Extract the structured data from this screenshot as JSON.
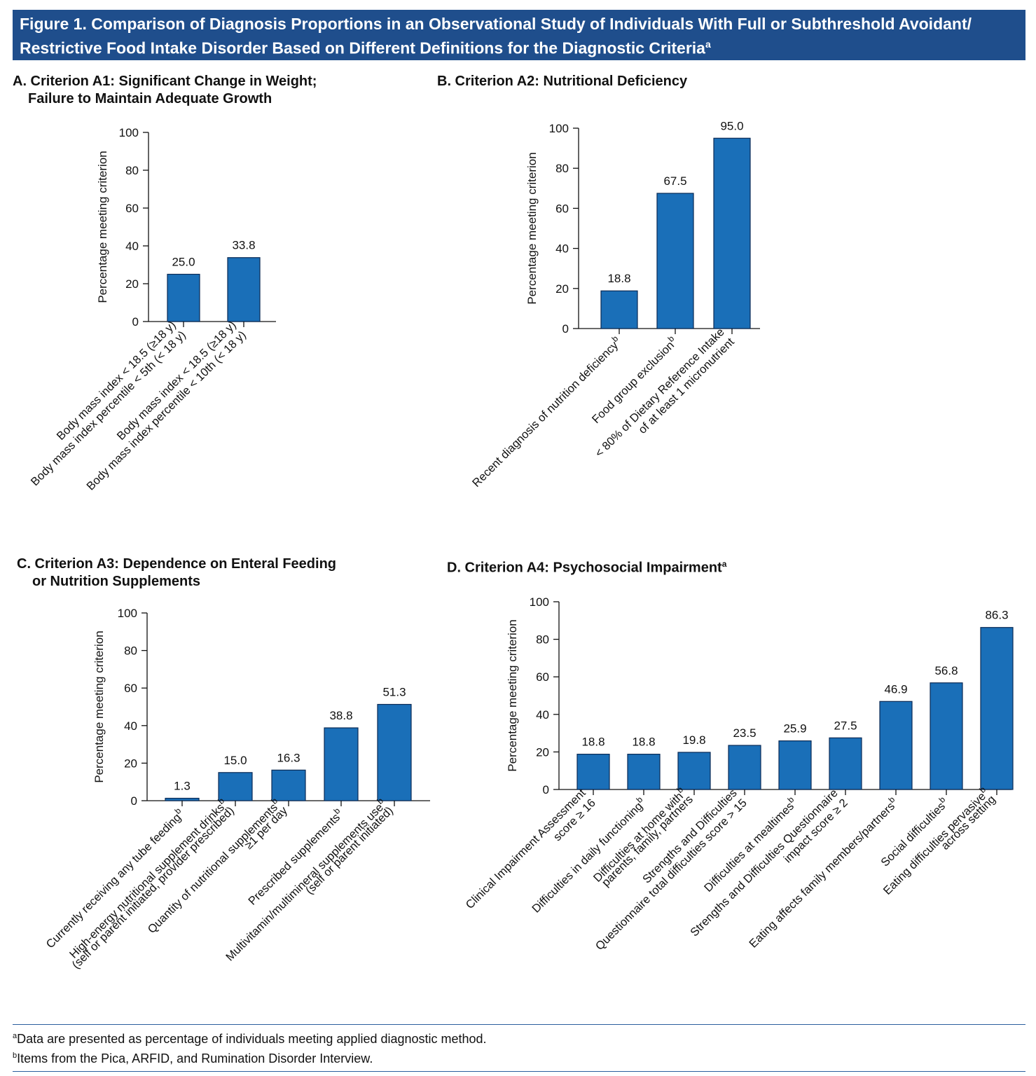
{
  "figure": {
    "title_line1": "Figure 1. Comparison of Diagnosis Proportions in an Observational Study of Individuals With Full or Subthreshold Avoidant/",
    "title_line2": "Restrictive Food Intake Disorder Based on Different Definitions for the Diagnostic Criteria",
    "title_sup": "a"
  },
  "panels": {
    "A": {
      "title_line1": "A. Criterion A1: Significant Change in Weight;",
      "title_line2": "Failure to Maintain Adequate Growth",
      "title_sup": ""
    },
    "B": {
      "title_line1": "B. Criterion A2: Nutritional Deficiency",
      "title_line2": "",
      "title_sup": ""
    },
    "C": {
      "title_line1": "C. Criterion A3: Dependence on Enteral Feeding",
      "title_line2": "or Nutrition Supplements",
      "title_sup": ""
    },
    "D": {
      "title_line1": "D. Criterion A4: Psychosocial Impairment",
      "title_line2": "",
      "title_sup": "a"
    }
  },
  "chart_data": [
    {
      "id": "A",
      "type": "bar",
      "ylabel": "Percentage meeting criterion",
      "ylim": [
        0,
        100
      ],
      "yticks": [
        "0",
        "20",
        "40",
        "60",
        "80",
        "100"
      ],
      "categories": [
        [
          "Body mass index < 18.5 (≥18 y)",
          "Body mass index percentile  < 5th (< 18 y)"
        ],
        [
          "Body mass index < 18.5 (≥18 y)",
          "Body mass index percentile < 10th  (< 18 y)"
        ]
      ],
      "category_sup": [
        "",
        ""
      ],
      "values": [
        25.0,
        33.8
      ],
      "labels": [
        "25.0",
        "33.8"
      ],
      "bar_color": "#1a6fb8"
    },
    {
      "id": "B",
      "type": "bar",
      "ylabel": "Percentage meeting criterion",
      "ylim": [
        0,
        100
      ],
      "yticks": [
        "0",
        "20",
        "40",
        "60",
        "80",
        "100"
      ],
      "categories": [
        [
          "Recent diagnosis of nutrition deficiency"
        ],
        [
          "Food group exclusion"
        ],
        [
          "< 80% of Dietary Reference Intake",
          "of at least 1 micronutrient"
        ]
      ],
      "category_sup": [
        "b",
        "b",
        ""
      ],
      "values": [
        18.8,
        67.5,
        95.0
      ],
      "labels": [
        "18.8",
        "67.5",
        "95.0"
      ],
      "bar_color": "#1a6fb8"
    },
    {
      "id": "C",
      "type": "bar",
      "ylabel": "Percentage meeting criterion",
      "ylim": [
        0,
        100
      ],
      "yticks": [
        "0",
        "20",
        "40",
        "60",
        "80",
        "100"
      ],
      "categories": [
        [
          "Currently receiving any tube feeding"
        ],
        [
          "High-energy nutritional supplement drinks",
          "(self or parent initiated, provider prescribed)"
        ],
        [
          "Quantity of nutritional supplements",
          "≥1 per day"
        ],
        [
          "Prescribed supplements"
        ],
        [
          "Multivitamin/multimineral supplements use",
          "(self or parent initiated)"
        ]
      ],
      "category_sup": [
        "b",
        "b",
        "b",
        "b",
        "b"
      ],
      "values": [
        1.3,
        15.0,
        16.3,
        38.8,
        51.3
      ],
      "labels": [
        "1.3",
        "15.0",
        "16.3",
        "38.8",
        "51.3"
      ],
      "bar_color": "#1a6fb8"
    },
    {
      "id": "D",
      "type": "bar",
      "ylabel": "Percentage meeting criterion",
      "ylim": [
        0,
        100
      ],
      "yticks": [
        "0",
        "20",
        "40",
        "60",
        "80",
        "100"
      ],
      "categories": [
        [
          "Clinical Impairment Assessment",
          "score ≥ 16"
        ],
        [
          "Difficulties in daily functioning"
        ],
        [
          "Difficulties at home with",
          "parents, family, partners"
        ],
        [
          "Strengths and  Difficulties",
          "Questionnaire total difficulties score > 15"
        ],
        [
          "Difficulties at mealtimes"
        ],
        [
          "Strengths and Difficulties Questionnaire",
          "impact score ≥ 2"
        ],
        [
          "Eating affects family members/partners"
        ],
        [
          "Social difficulties"
        ],
        [
          "Eating difficulties pervasive",
          "across setting"
        ]
      ],
      "category_sup": [
        "",
        "b",
        "b",
        "",
        "b",
        "",
        "b",
        "b",
        "b"
      ],
      "values": [
        18.8,
        18.8,
        19.8,
        23.5,
        25.9,
        27.5,
        46.9,
        56.8,
        86.3
      ],
      "labels": [
        "18.8",
        "18.8",
        "19.8",
        "23.5",
        "25.9",
        "27.5",
        "46.9",
        "56.8",
        "86.3"
      ],
      "bar_color": "#1a6fb8"
    }
  ],
  "footnotes": {
    "a_mark": "a",
    "a_text": "Data are presented as percentage of individuals meeting applied diagnostic method.",
    "b_mark": "b",
    "b_text": "Items from the Pica, ARFID, and Rumination Disorder Interview."
  }
}
